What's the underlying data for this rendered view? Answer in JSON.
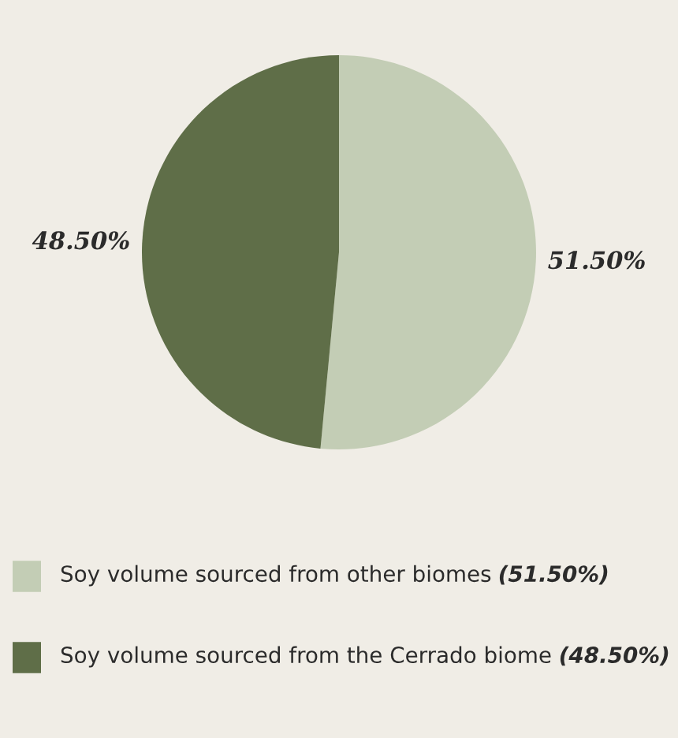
{
  "chart_data": {
    "type": "pie",
    "categories": [
      "Soy volume sourced from other biomes",
      "Soy volume sourced from the Cerrado biome"
    ],
    "values": [
      51.5,
      48.5
    ],
    "colors": [
      "#c3cdb5",
      "#5f6e48"
    ],
    "value_labels": [
      "51.50%",
      "48.50%"
    ],
    "annotations": [
      "(51.50%)",
      "(48.50%)"
    ],
    "legend": "bottom"
  }
}
